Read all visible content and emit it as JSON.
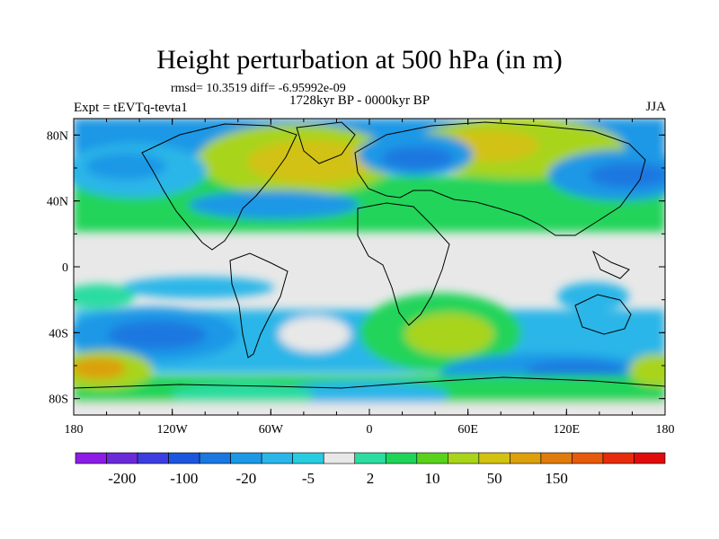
{
  "chart_data": {
    "type": "heatmap",
    "title": "Height perturbation at 500 hPa (in m)",
    "stats_line": "rmsd= 10.3519 diff= -6.95992e-09",
    "subtitle": "1728kyr BP - 0000kyr BP",
    "left_label": "Expt = tEVTq-tevta1",
    "right_label": "JJA",
    "x_ticks": [
      "180",
      "120W",
      "60W",
      "0",
      "60E",
      "120E",
      "180"
    ],
    "y_ticks": [
      "80N",
      "40N",
      "0",
      "40S",
      "80S"
    ],
    "xlim": [
      -180,
      180
    ],
    "ylim": [
      -90,
      90
    ],
    "colorbar": {
      "levels": [
        "-200",
        "-100",
        "-20",
        "-5",
        "2",
        "10",
        "50",
        "150"
      ],
      "colors": [
        "#8c1ce6",
        "#6a2ad8",
        "#3c3ee0",
        "#1c56dc",
        "#1a78e0",
        "#1c98e6",
        "#2ab6e8",
        "#28cce0",
        "#e8e8e8",
        "#2cdca0",
        "#20d45a",
        "#5ad21c",
        "#a8d41a",
        "#d2c212",
        "#dca00e",
        "#e07c0c",
        "#e65a0c",
        "#e62c0c",
        "#e00c0c"
      ]
    }
  }
}
